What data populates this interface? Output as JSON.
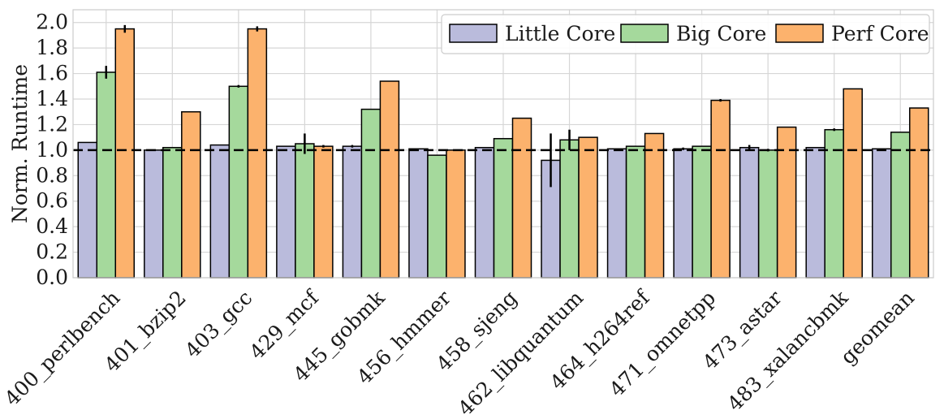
{
  "chart_data": {
    "type": "bar",
    "title": "",
    "xlabel": "",
    "ylabel": "Norm. Runtime",
    "ylim": [
      0,
      2.1
    ],
    "yticks": [
      "0.0",
      "0.2",
      "0.4",
      "0.6",
      "0.8",
      "1.0",
      "1.2",
      "1.4",
      "1.6",
      "1.8",
      "2.0"
    ],
    "grid": true,
    "legend_position": "top-right",
    "reference_line": 1.0,
    "categories": [
      "400_perlbench",
      "401_bzip2",
      "403_gcc",
      "429_mcf",
      "445_gobmk",
      "456_hmmer",
      "458_sjeng",
      "462_libquantum",
      "464_h264ref",
      "471_omnetpp",
      "473_astar",
      "483_xalancbmk",
      "geomean"
    ],
    "series": [
      {
        "name": "Little Core",
        "color": "#babbdc",
        "values": [
          1.06,
          1.0,
          1.04,
          1.03,
          1.03,
          1.01,
          1.02,
          0.92,
          1.01,
          1.01,
          1.02,
          1.02,
          1.01
        ],
        "errors": [
          0.0,
          0.0,
          0.0,
          0.0,
          0.01,
          0.0,
          0.0,
          0.21,
          0.0,
          0.01,
          0.02,
          0.0,
          0.0
        ]
      },
      {
        "name": "Big Core",
        "color": "#a5d99c",
        "values": [
          1.61,
          1.02,
          1.5,
          1.05,
          1.32,
          0.96,
          1.09,
          1.08,
          1.03,
          1.03,
          1.0,
          1.16,
          1.14
        ],
        "errors": [
          0.05,
          0.0,
          0.01,
          0.08,
          0.0,
          0.0,
          0.0,
          0.08,
          0.0,
          0.0,
          0.01,
          0.01,
          0.0
        ]
      },
      {
        "name": "Perf Core",
        "color": "#fcb26d",
        "values": [
          1.95,
          1.3,
          1.95,
          1.03,
          1.54,
          1.0,
          1.25,
          1.1,
          1.13,
          1.39,
          1.18,
          1.48,
          1.33
        ],
        "errors": [
          0.03,
          0.0,
          0.02,
          0.01,
          0.0,
          0.0,
          0.0,
          0.0,
          0.0,
          0.01,
          0.0,
          0.0,
          0.0
        ]
      }
    ]
  }
}
